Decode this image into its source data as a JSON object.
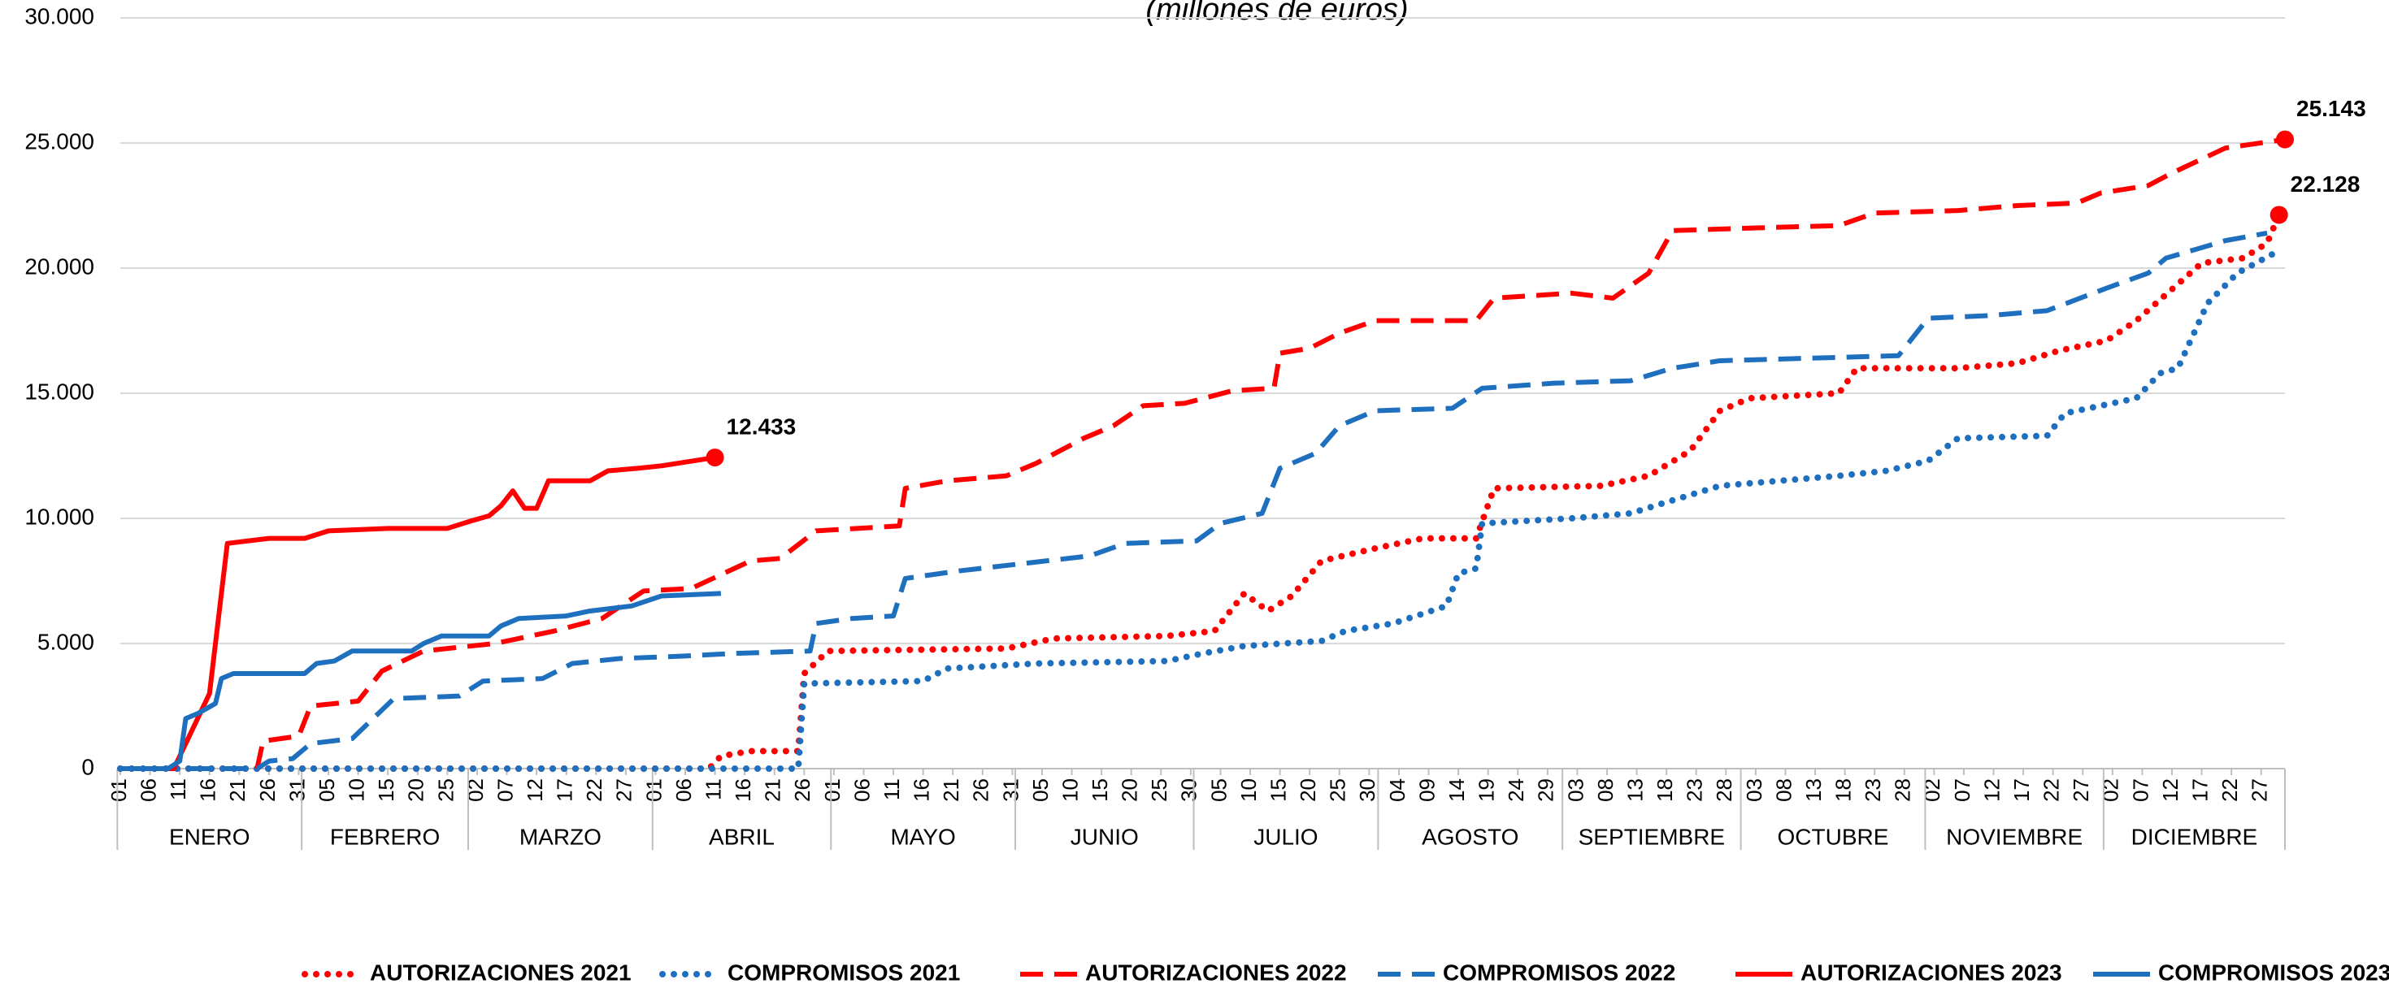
{
  "chart_data": {
    "type": "line",
    "subtitle": "(millones de euros)",
    "xlim": [
      1,
      365
    ],
    "ylim": [
      0,
      30000
    ],
    "yticks": [
      0,
      {
        "value": 5000,
        "label": "5.000"
      },
      {
        "value": 10000,
        "label": "10.000"
      },
      {
        "value": 15000,
        "label": "15.000"
      },
      {
        "value": 20000,
        "label": "20.000"
      },
      {
        "value": 25000,
        "label": "25.000"
      },
      {
        "value": 30000,
        "label": "30.000"
      }
    ],
    "xticks": [
      {
        "value": 1,
        "label": "01"
      },
      {
        "value": 6,
        "label": "06"
      },
      {
        "value": 11,
        "label": "11"
      },
      {
        "value": 16,
        "label": "16"
      },
      {
        "value": 21,
        "label": "21"
      },
      {
        "value": 26,
        "label": "26"
      },
      {
        "value": 31,
        "label": "31"
      },
      {
        "value": 36,
        "label": "05"
      },
      {
        "value": 41,
        "label": "10"
      },
      {
        "value": 46,
        "label": "15"
      },
      {
        "value": 51,
        "label": "20"
      },
      {
        "value": 56,
        "label": "25"
      },
      {
        "value": 61,
        "label": "02"
      },
      {
        "value": 66,
        "label": "07"
      },
      {
        "value": 71,
        "label": "12"
      },
      {
        "value": 76,
        "label": "17"
      },
      {
        "value": 81,
        "label": "22"
      },
      {
        "value": 86,
        "label": "27"
      },
      {
        "value": 91,
        "label": "01"
      },
      {
        "value": 96,
        "label": "06"
      },
      {
        "value": 101,
        "label": "11"
      },
      {
        "value": 106,
        "label": "16"
      },
      {
        "value": 111,
        "label": "21"
      },
      {
        "value": 116,
        "label": "26"
      },
      {
        "value": 121,
        "label": "01"
      },
      {
        "value": 126,
        "label": "06"
      },
      {
        "value": 131,
        "label": "11"
      },
      {
        "value": 136,
        "label": "16"
      },
      {
        "value": 141,
        "label": "21"
      },
      {
        "value": 146,
        "label": "26"
      },
      {
        "value": 151,
        "label": "31"
      },
      {
        "value": 156,
        "label": "05"
      },
      {
        "value": 161,
        "label": "10"
      },
      {
        "value": 166,
        "label": "15"
      },
      {
        "value": 171,
        "label": "20"
      },
      {
        "value": 176,
        "label": "25"
      },
      {
        "value": 181,
        "label": "30"
      },
      {
        "value": 186,
        "label": "05"
      },
      {
        "value": 191,
        "label": "10"
      },
      {
        "value": 196,
        "label": "15"
      },
      {
        "value": 201,
        "label": "20"
      },
      {
        "value": 206,
        "label": "25"
      },
      {
        "value": 211,
        "label": "30"
      },
      {
        "value": 216,
        "label": "04"
      },
      {
        "value": 221,
        "label": "09"
      },
      {
        "value": 226,
        "label": "14"
      },
      {
        "value": 231,
        "label": "19"
      },
      {
        "value": 236,
        "label": "24"
      },
      {
        "value": 241,
        "label": "29"
      },
      {
        "value": 246,
        "label": "03"
      },
      {
        "value": 251,
        "label": "08"
      },
      {
        "value": 256,
        "label": "13"
      },
      {
        "value": 261,
        "label": "18"
      },
      {
        "value": 266,
        "label": "23"
      },
      {
        "value": 271,
        "label": "28"
      },
      {
        "value": 276,
        "label": "03"
      },
      {
        "value": 281,
        "label": "08"
      },
      {
        "value": 286,
        "label": "13"
      },
      {
        "value": 291,
        "label": "18"
      },
      {
        "value": 296,
        "label": "23"
      },
      {
        "value": 301,
        "label": "28"
      },
      {
        "value": 306,
        "label": "02"
      },
      {
        "value": 311,
        "label": "07"
      },
      {
        "value": 316,
        "label": "12"
      },
      {
        "value": 321,
        "label": "17"
      },
      {
        "value": 326,
        "label": "22"
      },
      {
        "value": 331,
        "label": "27"
      },
      {
        "value": 336,
        "label": "02"
      },
      {
        "value": 341,
        "label": "07"
      },
      {
        "value": 346,
        "label": "12"
      },
      {
        "value": 351,
        "label": "17"
      },
      {
        "value": 356,
        "label": "22"
      },
      {
        "value": 361,
        "label": "27"
      }
    ],
    "months": [
      "ENERO",
      "FEBRERO",
      "MARZO",
      "ABRIL",
      "MAYO",
      "JUNIO",
      "JULIO",
      "AGOSTO",
      "SEPTIEMBRE",
      "OCTUBRE",
      "NOVIEMBRE",
      "DICIEMBRE"
    ],
    "grid": true,
    "legend": "bottom",
    "series": [
      {
        "name": "AUTORIZACIONES 2021",
        "color": "#ff0000",
        "style": "dotted",
        "x": [
          1,
          100,
          102,
          107,
          115,
          116,
          120,
          150,
          158,
          177,
          185,
          189,
          190,
          194,
          198,
          203,
          212,
          220,
          229,
          232,
          250,
          258,
          265,
          270,
          275,
          290,
          293,
          310,
          320,
          327,
          335,
          340,
          351,
          358,
          362,
          364
        ],
        "values": [
          0,
          0,
          500,
          700,
          700,
          3800,
          4700,
          4800,
          5200,
          5300,
          5500,
          6700,
          7000,
          6300,
          6900,
          8300,
          8800,
          9200,
          9200,
          11200,
          11300,
          11700,
          12700,
          14300,
          14800,
          15000,
          16000,
          16000,
          16200,
          16700,
          17100,
          17900,
          20200,
          20400,
          21000,
          22128
        ],
        "end_label": "22.128"
      },
      {
        "name": "COMPROMISOS 2021",
        "color": "#1f6fbf",
        "style": "dotted",
        "x": [
          1,
          115,
          116,
          136,
          140,
          155,
          177,
          183,
          190,
          203,
          207,
          215,
          224,
          226,
          229,
          230,
          245,
          255,
          259,
          270,
          290,
          298,
          305,
          310,
          325,
          328,
          340,
          344,
          347,
          352,
          357,
          364
        ],
        "values": [
          0,
          0,
          3400,
          3500,
          4000,
          4200,
          4300,
          4600,
          4900,
          5100,
          5500,
          5800,
          6500,
          7800,
          8000,
          9800,
          10000,
          10200,
          10500,
          11300,
          11700,
          11900,
          12300,
          13200,
          13300,
          14200,
          14800,
          15800,
          16000,
          18600,
          19800,
          20700
        ]
      },
      {
        "name": "AUTORIZACIONES 2022",
        "color": "#ff0000",
        "style": "dashed",
        "x": [
          1,
          24,
          25,
          31,
          33,
          41,
          45,
          52,
          64,
          74,
          82,
          89,
          97,
          107,
          112,
          118,
          132,
          133,
          140,
          150,
          155,
          163,
          168,
          173,
          180,
          188,
          195,
          196,
          201,
          206,
          212,
          229,
          232,
          245,
          252,
          258,
          262,
          275,
          290,
          296,
          310,
          320,
          330,
          334,
          342,
          346,
          355,
          365
        ],
        "values": [
          0,
          0,
          1100,
          1300,
          2500,
          2700,
          3900,
          4700,
          5000,
          5500,
          6000,
          7100,
          7200,
          8300,
          8400,
          9500,
          9700,
          11200,
          11500,
          11700,
          12200,
          13200,
          13700,
          14500,
          14600,
          15100,
          15200,
          16600,
          16800,
          17400,
          17900,
          17900,
          18800,
          19000,
          18800,
          19800,
          21500,
          21600,
          21700,
          22200,
          22300,
          22500,
          22600,
          23000,
          23300,
          23800,
          24800,
          25143
        ],
        "end_label": "25.143"
      },
      {
        "name": "COMPROMISOS 2022",
        "color": "#1f6fbf",
        "style": "dashed",
        "x": [
          1,
          24,
          26,
          30,
          33,
          40,
          47,
          58,
          62,
          72,
          77,
          85,
          96,
          104,
          117,
          118,
          124,
          131,
          133,
          142,
          153,
          164,
          170,
          182,
          186,
          193,
          196,
          202,
          206,
          212,
          225,
          230,
          242,
          255,
          262,
          270,
          285,
          300,
          305,
          315,
          325,
          335,
          342,
          345,
          355,
          362
        ],
        "values": [
          0,
          0,
          300,
          400,
          1000,
          1200,
          2800,
          2900,
          3500,
          3600,
          4200,
          4400,
          4500,
          4600,
          4700,
          5800,
          6000,
          6100,
          7600,
          7900,
          8200,
          8500,
          9000,
          9100,
          9800,
          10200,
          12000,
          12600,
          13700,
          14300,
          14400,
          15200,
          15400,
          15500,
          16000,
          16300,
          16400,
          16500,
          18000,
          18100,
          18300,
          19200,
          19800,
          20400,
          21100,
          21400
        ]
      },
      {
        "name": "AUTORIZACIONES 2023",
        "color": "#ff0000",
        "style": "solid",
        "x": [
          1,
          10,
          16,
          19,
          26,
          32,
          36,
          46,
          56,
          60,
          63,
          65,
          67,
          69,
          71,
          73,
          80,
          83,
          88,
          92,
          101
        ],
        "values": [
          0,
          0,
          3000,
          9000,
          9200,
          9200,
          9500,
          9600,
          9600,
          9900,
          10100,
          10500,
          11100,
          10400,
          10400,
          11500,
          11500,
          11900,
          12000,
          12100,
          12433
        ],
        "end_label": "12.433"
      },
      {
        "name": "COMPROMISOS 2023",
        "color": "#1f6fbf",
        "style": "solid",
        "x": [
          1,
          9,
          11,
          12,
          14,
          17,
          18,
          20,
          32,
          34,
          37,
          40,
          50,
          52,
          55,
          63,
          65,
          68,
          76,
          80,
          87,
          92,
          102
        ],
        "values": [
          0,
          0,
          300,
          2000,
          2200,
          2600,
          3600,
          3800,
          3800,
          4200,
          4300,
          4700,
          4700,
          5000,
          5300,
          5300,
          5700,
          6000,
          6100,
          6300,
          6500,
          6900,
          7000
        ]
      }
    ]
  }
}
